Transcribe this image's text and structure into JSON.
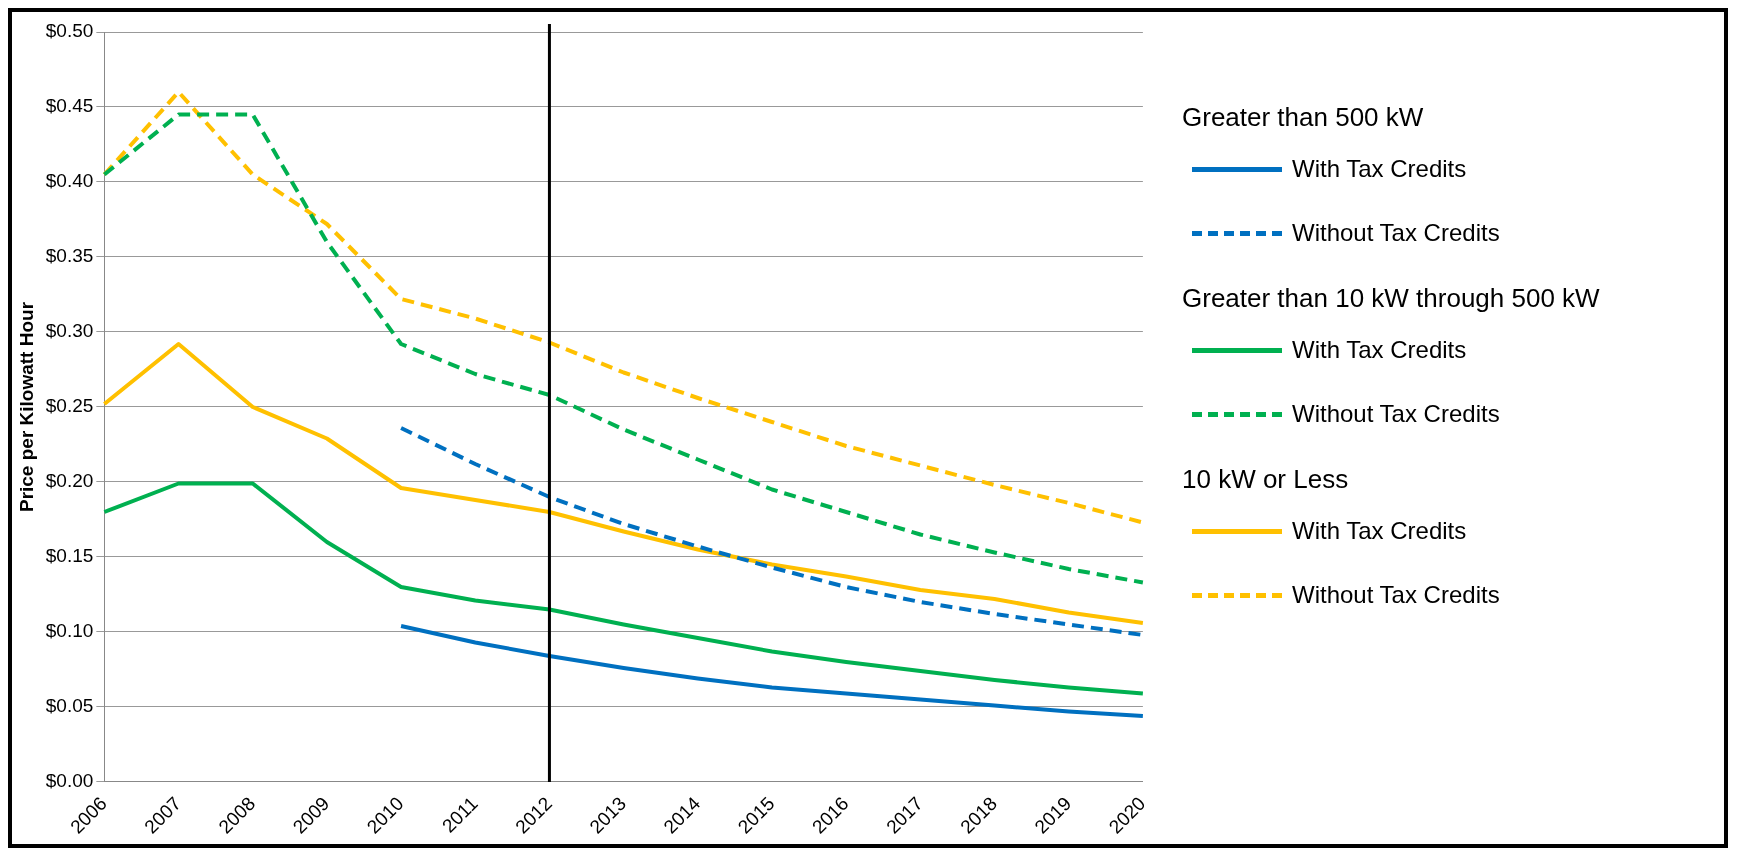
{
  "chart_data": {
    "type": "line",
    "ylabel": "Price per Kilowatt Hour",
    "categories": [
      "2006",
      "2007",
      "2008",
      "2009",
      "2010",
      "2011",
      "2012",
      "2013",
      "2014",
      "2015",
      "2016",
      "2017",
      "2018",
      "2019",
      "2020"
    ],
    "series": [
      {
        "name": "With Tax Credits",
        "color": "#0070c0",
        "line_style": "solid",
        "values": [
          null,
          null,
          null,
          null,
          0.104,
          0.093,
          0.084,
          0.076,
          0.069,
          0.063,
          0.059,
          0.055,
          0.051,
          0.047,
          0.044
        ]
      },
      {
        "name": "Without Tax Credits",
        "color": "#0070c0",
        "line_style": "dashed",
        "values": [
          null,
          null,
          null,
          null,
          0.236,
          0.212,
          0.19,
          0.172,
          0.157,
          0.143,
          0.13,
          0.12,
          0.112,
          0.105,
          0.098
        ]
      },
      {
        "name": "With Tax Credits",
        "color": "#00b050",
        "line_style": "solid",
        "values": [
          0.18,
          0.199,
          0.199,
          0.16,
          0.13,
          0.121,
          0.115,
          0.105,
          0.096,
          0.087,
          0.08,
          0.074,
          0.068,
          0.063,
          0.059
        ]
      },
      {
        "name": "Without Tax Credits",
        "color": "#00b050",
        "line_style": "dashed",
        "values": [
          0.405,
          0.445,
          0.445,
          0.36,
          0.292,
          0.272,
          0.258,
          0.235,
          0.215,
          0.195,
          0.18,
          0.165,
          0.153,
          0.142,
          0.133
        ]
      },
      {
        "name": "With Tax Credits",
        "color": "#ffc000",
        "line_style": "solid",
        "values": [
          0.252,
          0.292,
          0.25,
          0.229,
          0.196,
          0.188,
          0.18,
          0.167,
          0.155,
          0.145,
          0.137,
          0.128,
          0.122,
          0.113,
          0.106
        ]
      },
      {
        "name": "Without Tax Credits",
        "color": "#ffc000",
        "line_style": "dashed",
        "values": [
          0.405,
          0.46,
          0.405,
          0.372,
          0.322,
          0.309,
          0.293,
          0.273,
          0.256,
          0.24,
          0.224,
          0.211,
          0.198,
          0.186,
          0.173
        ]
      }
    ],
    "annotations": [
      "Greater than 500 kW",
      "Greater than 10 kW through 500 kW",
      "10 kW or Less"
    ],
    "ref_lines": [
      {
        "axis": "x",
        "value": "2012",
        "color": "#000000"
      }
    ],
    "ylim": [
      0,
      0.5
    ],
    "yticks": [
      {
        "value": 0,
        "label": "$0.00"
      },
      {
        "value": 0.05,
        "label": "$0.05"
      },
      {
        "value": 0.1,
        "label": "$0.10"
      },
      {
        "value": 0.15,
        "label": "$0.15"
      },
      {
        "value": 0.2,
        "label": "$0.20"
      },
      {
        "value": 0.25,
        "label": "$0.25"
      },
      {
        "value": 0.3,
        "label": "$0.30"
      },
      {
        "value": 0.35,
        "label": "$0.35"
      },
      {
        "value": 0.4,
        "label": "$0.40"
      },
      {
        "value": 0.45,
        "label": "$0.45"
      },
      {
        "value": 0.5,
        "label": "$0.50"
      }
    ],
    "grid": "y",
    "legend": "right",
    "marker": "none"
  }
}
